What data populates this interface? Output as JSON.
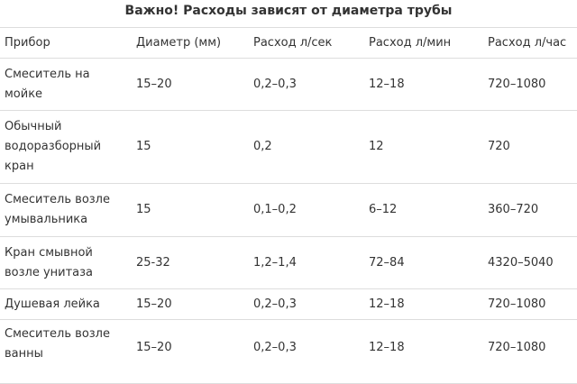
{
  "caption": "Важно! Расходы зависят от диаметра трубы",
  "headers": [
    "Прибор",
    "Диаметр (мм)",
    "Расход л/сек",
    "Расход л/мин",
    "Расход л/час"
  ],
  "rows": [
    {
      "device": "Смеситель на мойке",
      "diameter": "15–20",
      "per_sec": "0,2–0,3",
      "per_min": "12–18",
      "per_hour": "720–1080"
    },
    {
      "device": "Обычный водоразборный кран",
      "diameter": "15",
      "per_sec": "0,2",
      "per_min": "12",
      "per_hour": "720"
    },
    {
      "device": "Смеситель возле умывальника",
      "diameter": "15",
      "per_sec": "0,1–0,2",
      "per_min": "6–12",
      "per_hour": "360–720"
    },
    {
      "device": "Кран смывной возле унитаза",
      "diameter": "25-32",
      "per_sec": "1,2–1,4",
      "per_min": "72–84",
      "per_hour": "4320–5040"
    },
    {
      "device": "Душевая лейка",
      "diameter": "15–20",
      "per_sec": "0,2–0,3",
      "per_min": "12–18",
      "per_hour": "720–1080"
    },
    {
      "device": "Смеситель возле ванны",
      "diameter": "15–20",
      "per_sec": "0,2–0,3",
      "per_min": "12–18",
      "per_hour": "720–1080"
    }
  ]
}
